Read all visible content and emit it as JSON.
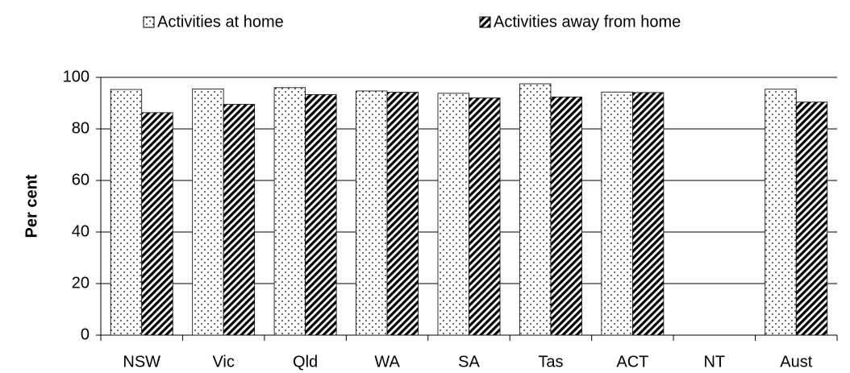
{
  "chart_data": {
    "type": "bar",
    "y_label": "Per cent",
    "categories": [
      "NSW",
      "Vic",
      "Qld",
      "WA",
      "SA",
      "Tas",
      "ACT",
      "NT",
      "Aust"
    ],
    "series": [
      {
        "name": "Activities at home",
        "color": "#000000",
        "pattern": "dots",
        "values": [
          95.3,
          95.5,
          96.0,
          94.7,
          93.8,
          97.5,
          94.3,
          null,
          95.4
        ]
      },
      {
        "name": "Activities away from home",
        "color": "#000000",
        "pattern": "diagonal",
        "values": [
          86.3,
          89.5,
          93.3,
          94.2,
          92.0,
          92.4,
          94.1,
          null,
          90.4
        ]
      }
    ],
    "ylim": [
      0,
      100
    ],
    "yticks": [
      0,
      20,
      40,
      60,
      80,
      100
    ],
    "grid": true,
    "legend": "top"
  }
}
